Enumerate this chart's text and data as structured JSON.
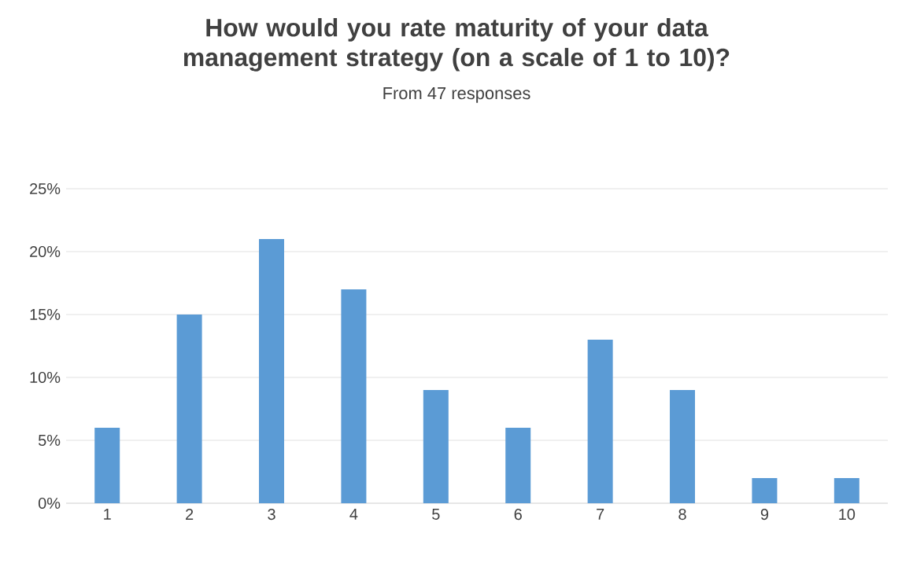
{
  "chart_data": {
    "type": "bar",
    "title": "How would you rate maturity of your data management strategy (on a scale of 1 to 10)?",
    "subtitle": "From 47 responses",
    "categories": [
      "1",
      "2",
      "3",
      "4",
      "5",
      "6",
      "7",
      "8",
      "9",
      "10"
    ],
    "values": [
      6,
      15,
      21,
      17,
      9,
      6,
      13,
      9,
      2,
      2
    ],
    "color": "#5b9bd5",
    "ylim": [
      0,
      25
    ],
    "yticks": [
      {
        "value": 0,
        "label": "0%"
      },
      {
        "value": 5,
        "label": "5%"
      },
      {
        "value": 10,
        "label": "10%"
      },
      {
        "value": 15,
        "label": "15%"
      },
      {
        "value": 20,
        "label": "20%"
      },
      {
        "value": 25,
        "label": "25%"
      }
    ],
    "grid": "y"
  }
}
